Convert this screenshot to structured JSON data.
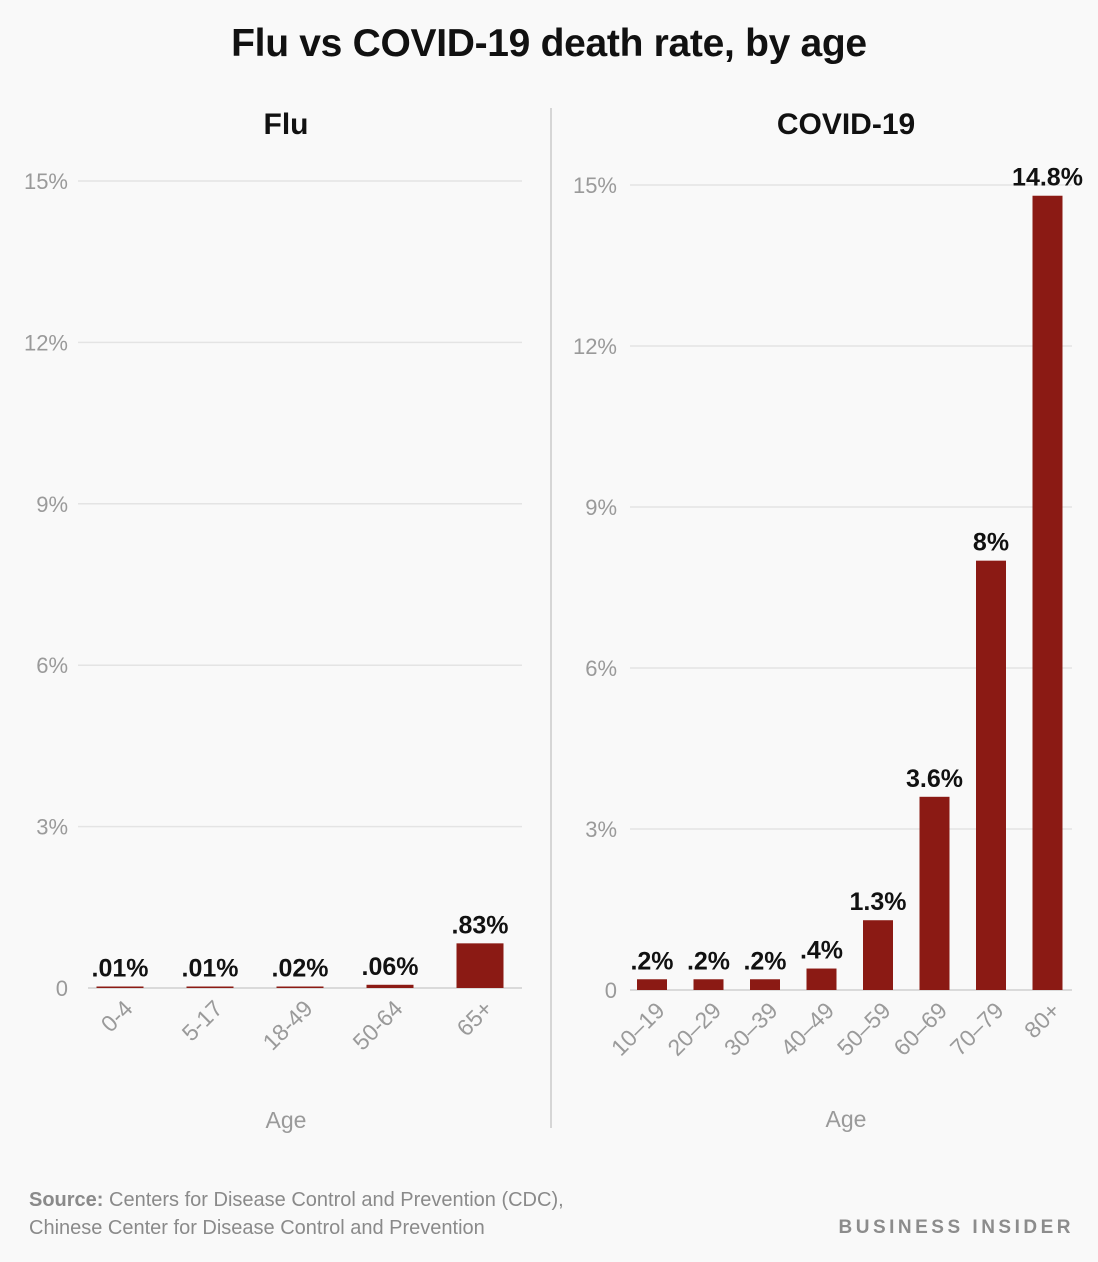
{
  "title": "Flu vs COVID-19 death rate, by age",
  "colors": {
    "bar": "#8b1a14",
    "grid": "#e4e4e4",
    "axis_text": "#9a9a9a",
    "label": "#111111",
    "divider": "#d6d6d6"
  },
  "chart_data": [
    {
      "type": "bar",
      "title": "Flu",
      "xlabel": "Age",
      "ylabel": "",
      "categories": [
        "0-4",
        "5-17",
        "18-49",
        "50-64",
        "65+"
      ],
      "values": [
        0.01,
        0.01,
        0.02,
        0.06,
        0.83
      ],
      "data_labels": [
        ".01%",
        ".01%",
        ".02%",
        ".06%",
        ".83%"
      ],
      "ylim": [
        0,
        15
      ],
      "yticks": [
        0,
        3,
        6,
        9,
        12,
        15
      ],
      "ytick_labels": [
        "0",
        "3%",
        "6%",
        "9%",
        "12%",
        "15%"
      ],
      "grid": true
    },
    {
      "type": "bar",
      "title": "COVID-19",
      "xlabel": "Age",
      "ylabel": "",
      "categories": [
        "10–19",
        "20–29",
        "30–39",
        "40–49",
        "50–59",
        "60–69",
        "70–79",
        "80+"
      ],
      "values": [
        0.2,
        0.2,
        0.2,
        0.4,
        1.3,
        3.6,
        8,
        14.8
      ],
      "data_labels": [
        ".2%",
        ".2%",
        ".2%",
        ".4%",
        "1.3%",
        "3.6%",
        "8%",
        "14.8%"
      ],
      "ylim": [
        0,
        15
      ],
      "yticks": [
        0,
        3,
        6,
        9,
        12,
        15
      ],
      "ytick_labels": [
        "0",
        "3%",
        "6%",
        "9%",
        "12%",
        "15%"
      ],
      "grid": true
    }
  ],
  "source": {
    "label": "Source:",
    "line1": " Centers for Disease Control and Prevention (CDC),",
    "line2": "Chinese Center for Disease Control and Prevention"
  },
  "brand": "BUSINESS INSIDER"
}
